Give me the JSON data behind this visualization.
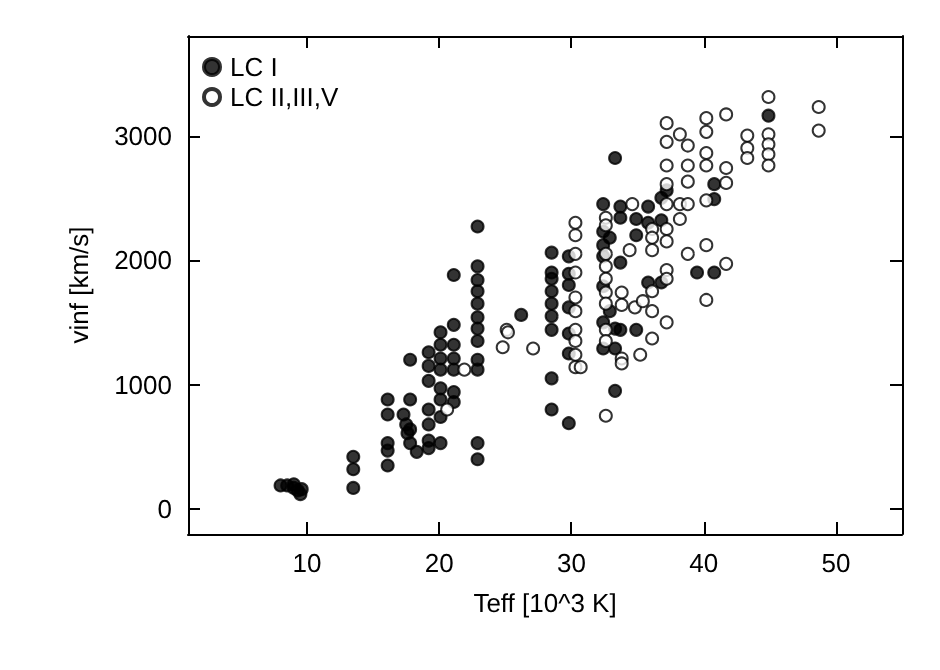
{
  "chart_data": {
    "type": "scatter",
    "xlabel": "Teff [10^3 K]",
    "ylabel": "vinf [km/s]",
    "xlim": [
      1,
      55
    ],
    "ylim": [
      -200,
      3800
    ],
    "xticks": [
      10,
      20,
      30,
      40,
      50
    ],
    "yticks": [
      0,
      1000,
      2000,
      3000
    ],
    "grid": false,
    "legend": "top left",
    "marker": "circle",
    "series": [
      {
        "name": "LC I",
        "color": "#000000",
        "x": [
          8,
          8.5,
          9,
          9.3,
          9.5,
          9.6,
          9,
          13.5,
          13.5,
          13.5,
          16.1,
          16.1,
          16.1,
          16.1,
          16.1,
          17.3,
          17.5,
          17.6,
          17.8,
          18.3,
          17.8,
          17.8,
          17.8,
          19.2,
          19.2,
          19.2,
          19.2,
          19.2,
          19.2,
          19.2,
          20.1,
          20.1,
          20.1,
          20.1,
          20.1,
          20.1,
          20.1,
          20.1,
          21.1,
          21.1,
          21.1,
          21.1,
          21.1,
          21.1,
          21.1,
          22.9,
          22.9,
          22.9,
          22.9,
          22.9,
          22.9,
          22.9,
          22.9,
          22.9,
          22.9,
          22.9,
          22.9,
          26.2,
          28.5,
          28.5,
          28.5,
          28.5,
          28.5,
          28.5,
          28.5,
          28.5,
          28.5,
          29.8,
          29.8,
          29.8,
          29.8,
          29.8,
          29.8,
          29.8,
          32.4,
          32.4,
          32.4,
          32.4,
          32.4,
          32.4,
          32.4,
          32.9,
          32.9,
          33.3,
          33.3,
          33.3,
          33.3,
          33.7,
          33.7,
          33.7,
          33.7,
          34.9,
          34.9,
          34.9,
          35.8,
          35.8,
          35.8,
          36.8,
          36.8,
          36.8,
          37.2,
          39.5,
          40.8,
          40.8,
          40.8,
          44.9
        ],
        "values": [
          190,
          190,
          170,
          150,
          120,
          160,
          200,
          420,
          320,
          170,
          880,
          760,
          530,
          470,
          350,
          760,
          680,
          610,
          530,
          460,
          1200,
          880,
          640,
          1260,
          1150,
          1030,
          800,
          680,
          550,
          490,
          1420,
          1320,
          1210,
          1120,
          970,
          880,
          740,
          530,
          1880,
          1480,
          1320,
          1210,
          1120,
          940,
          860,
          2270,
          1950,
          1840,
          1750,
          1650,
          1540,
          1450,
          1350,
          1200,
          1120,
          530,
          400,
          1560,
          2060,
          1900,
          1850,
          1750,
          1650,
          1550,
          1440,
          1050,
          800,
          2030,
          1890,
          1800,
          1620,
          1410,
          1250,
          690,
          2450,
          2230,
          2120,
          2030,
          1790,
          1500,
          1290,
          2180,
          1590,
          2820,
          950,
          1290,
          1450,
          2430,
          2340,
          1980,
          1440,
          2200,
          2330,
          1440,
          2430,
          2300,
          1820,
          2500,
          2320,
          1820,
          2560,
          1900,
          2610,
          2490,
          1900,
          3160
        ]
      },
      {
        "name": "LC II,III,V",
        "color": "#000000",
        "x": [
          20.6,
          21.9,
          24.8,
          25.1,
          25.2,
          27.1,
          30.3,
          30.3,
          30.3,
          30.3,
          30.3,
          30.3,
          30.3,
          30.3,
          30.3,
          30.3,
          30.7,
          32.6,
          32.6,
          32.6,
          32.6,
          32.6,
          32.6,
          32.6,
          32.6,
          32.6,
          32.6,
          33.8,
          33.8,
          33.8,
          33.8,
          34.4,
          34.6,
          34.8,
          35.2,
          35.4,
          36.1,
          36.1,
          36.1,
          36.1,
          36.1,
          36.1,
          37.2,
          37.2,
          37.2,
          37.2,
          37.2,
          37.2,
          37.2,
          37.2,
          37.2,
          37.2,
          38.2,
          38.2,
          38.2,
          38.8,
          38.8,
          38.8,
          38.8,
          38.8,
          40.2,
          40.2,
          40.2,
          40.2,
          40.2,
          40.2,
          40.2,
          41.7,
          41.7,
          41.7,
          41.7,
          43.3,
          43.3,
          43.3,
          44.9,
          44.9,
          44.9,
          44.9,
          44.9,
          48.7,
          48.7
        ],
        "values": [
          800,
          1120,
          1300,
          1440,
          1420,
          1290,
          2300,
          2200,
          2050,
          1900,
          1700,
          1590,
          1440,
          1350,
          1240,
          1140,
          1140,
          2340,
          2280,
          2050,
          1950,
          1850,
          1740,
          1650,
          1440,
          1350,
          750,
          1740,
          1640,
          1210,
          1170,
          2080,
          2450,
          1620,
          1240,
          1670,
          2250,
          2180,
          2080,
          1750,
          1590,
          1370,
          3100,
          2950,
          2760,
          2610,
          2450,
          2250,
          2150,
          1920,
          1850,
          1500,
          3010,
          2450,
          2330,
          2920,
          2760,
          2630,
          2450,
          2050,
          3140,
          3030,
          2860,
          2760,
          2480,
          2120,
          1680,
          3170,
          2740,
          2620,
          1970,
          3000,
          2900,
          2820,
          3310,
          3010,
          2930,
          2850,
          2760,
          3230,
          3040
        ]
      }
    ]
  }
}
